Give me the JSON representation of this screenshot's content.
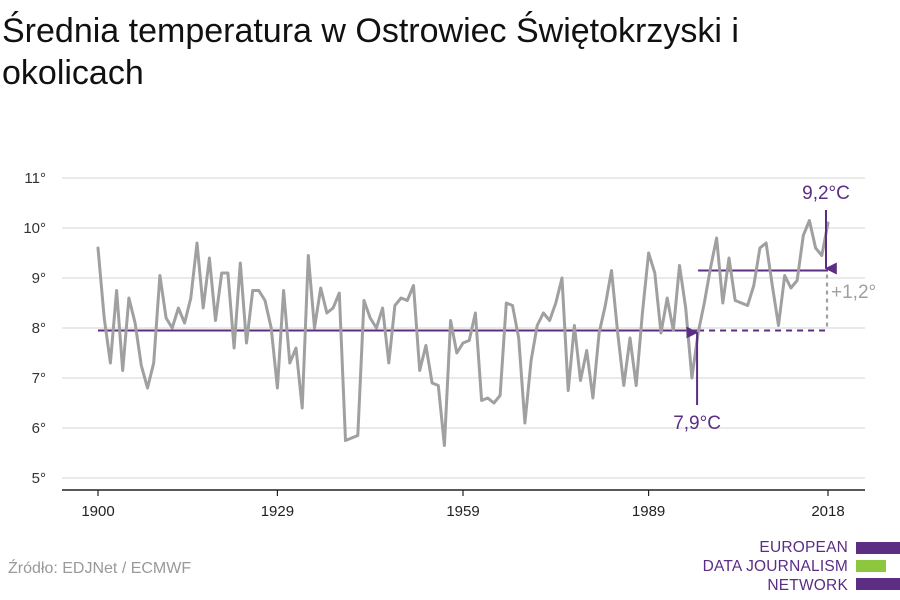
{
  "title": "Średnia temperatura w Ostrowiec Świętokrzyski i okolicach",
  "source": "Źródło: EDJNet / ECMWF",
  "logo": {
    "lines": [
      "EUROPEAN",
      "DATA JOURNALISM",
      "NETWORK"
    ],
    "colors": [
      "#5b2d83",
      "#8dc63f",
      "#5b2d83"
    ]
  },
  "colors": {
    "series": "#a0a0a0",
    "accent": "#5b2d83",
    "delta": "#a0a0a0",
    "grid": "#dddddd",
    "axis": "#222222"
  },
  "chart_data": {
    "type": "line",
    "title": "Średnia temperatura w Ostrowiec Świętokrzyski i okolicach",
    "xlabel": "",
    "ylabel": "",
    "xlim": [
      1900,
      2018
    ],
    "ylim": [
      5,
      11
    ],
    "grid": true,
    "yticks": [
      5,
      6,
      7,
      8,
      9,
      10,
      11
    ],
    "ytick_labels": [
      "5°",
      "6°",
      "7°",
      "8°",
      "9°",
      "10°",
      "11°"
    ],
    "xticks": [
      1900,
      1929,
      1959,
      1989,
      2018
    ],
    "xtick_labels": [
      "1900",
      "1929",
      "1959",
      "1989",
      "2018"
    ],
    "series": [
      {
        "x": [
          1900,
          1901,
          1902,
          1903,
          1904,
          1905,
          1906,
          1907,
          1908,
          1909,
          1910,
          1911,
          1912,
          1913,
          1914,
          1915,
          1916,
          1917,
          1918,
          1919,
          1920,
          1921,
          1922,
          1923,
          1924,
          1925,
          1926,
          1927,
          1928,
          1929,
          1930,
          1931,
          1932,
          1933,
          1934,
          1935,
          1936,
          1937,
          1938,
          1939,
          1940,
          1941,
          1942,
          1943,
          1944,
          1945,
          1946,
          1947,
          1948,
          1949,
          1950,
          1951,
          1952,
          1953,
          1954,
          1955,
          1956,
          1957,
          1958,
          1959,
          1960,
          1961,
          1962,
          1963,
          1964,
          1965,
          1966,
          1967,
          1968,
          1969,
          1970,
          1971,
          1972,
          1973,
          1974,
          1975,
          1976,
          1977,
          1978,
          1979,
          1980,
          1981,
          1982,
          1983,
          1984,
          1985,
          1986,
          1987,
          1988,
          1989,
          1990,
          1991,
          1992,
          1993,
          1994,
          1995,
          1996,
          1997,
          1998,
          1999,
          2000,
          2001,
          2002,
          2003,
          2004,
          2005,
          2006,
          2007,
          2008,
          2009,
          2010,
          2011,
          2012,
          2013,
          2014,
          2015,
          2016,
          2017,
          2018
        ],
        "values": [
          9.6,
          8.2,
          7.3,
          8.75,
          7.15,
          8.6,
          8.1,
          7.25,
          6.8,
          7.3,
          9.05,
          8.2,
          8.0,
          8.4,
          8.1,
          8.6,
          9.7,
          8.4,
          9.4,
          8.15,
          9.1,
          9.1,
          7.6,
          9.3,
          7.7,
          8.75,
          8.75,
          8.55,
          8.0,
          6.8,
          8.75,
          7.3,
          7.6,
          6.4,
          9.45,
          8.0,
          8.8,
          8.3,
          8.4,
          8.7,
          5.75,
          5.8,
          5.85,
          8.55,
          8.2,
          8.0,
          8.4,
          7.3,
          8.45,
          8.6,
          8.55,
          8.85,
          7.15,
          7.65,
          6.9,
          6.85,
          5.65,
          8.15,
          7.5,
          7.7,
          7.75,
          8.3,
          6.55,
          6.6,
          6.5,
          6.65,
          8.5,
          8.45,
          7.8,
          6.1,
          7.35,
          8.05,
          8.3,
          8.15,
          8.5,
          9.0,
          6.75,
          8.05,
          6.95,
          7.55,
          6.6,
          7.9,
          8.45,
          9.15,
          7.9,
          6.85,
          7.8,
          6.85,
          8.3,
          9.5,
          9.1,
          7.9,
          8.6,
          7.95,
          9.25,
          8.4,
          7.0,
          7.9,
          8.5,
          9.2,
          9.8,
          8.5,
          9.4,
          8.55,
          8.5,
          8.45,
          8.85,
          9.6,
          9.7,
          8.85,
          8.05,
          9.05,
          8.8,
          8.95,
          9.85,
          10.15,
          9.6,
          9.45,
          10.1
        ]
      }
    ],
    "reference_lines": [
      {
        "label": "7,9°C",
        "value": 7.95,
        "x_start": 1900,
        "x_solid_end": 1997,
        "x_end": 2018
      },
      {
        "label": "9,2°C",
        "value": 9.15,
        "x_start": 1997,
        "x_end": 2018
      }
    ],
    "delta_label": "+1,2°"
  }
}
